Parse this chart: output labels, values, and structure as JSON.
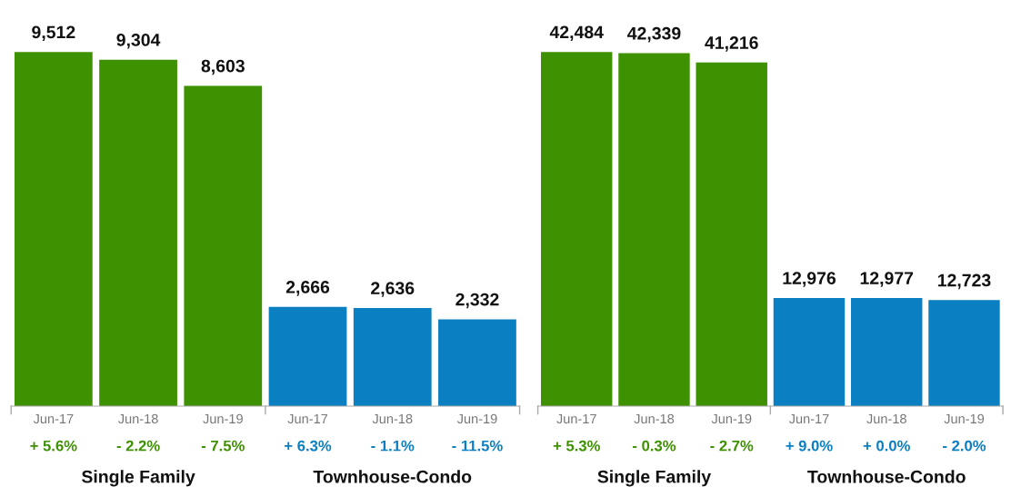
{
  "chart_data": [
    {
      "type": "bar",
      "categories": [
        "Jun-17",
        "Jun-18",
        "Jun-19",
        "Jun-17",
        "Jun-18",
        "Jun-19"
      ],
      "values": [
        9512,
        9304,
        8603,
        2666,
        2636,
        2332
      ],
      "value_labels": [
        "9,512",
        "9,304",
        "8,603",
        "2,666",
        "2,636",
        "2,332"
      ],
      "colors": [
        "#3e9100",
        "#3e9100",
        "#3e9100",
        "#0a7fc1",
        "#0a7fc1",
        "#0a7fc1"
      ],
      "annotations": [
        "+ 5.6%",
        "- 2.2%",
        "- 7.5%",
        "+ 6.3%",
        "- 1.1%",
        "- 11.5%",
        "Single Family",
        "Townhouse-Condo"
      ]
    },
    {
      "type": "bar",
      "categories": [
        "Jun-17",
        "Jun-18",
        "Jun-19",
        "Jun-17",
        "Jun-18",
        "Jun-19"
      ],
      "values": [
        42484,
        42339,
        41216,
        12976,
        12977,
        12723
      ],
      "value_labels": [
        "42,484",
        "42,339",
        "41,216",
        "12,976",
        "12,977",
        "12,723"
      ],
      "colors": [
        "#3e9100",
        "#3e9100",
        "#3e9100",
        "#0a7fc1",
        "#0a7fc1",
        "#0a7fc1"
      ],
      "annotations": [
        "+ 5.3%",
        "- 0.3%",
        "- 2.7%",
        "+ 9.0%",
        "+ 0.0%",
        "- 2.0%",
        "Single Family",
        "Townhouse-Condo"
      ]
    }
  ]
}
